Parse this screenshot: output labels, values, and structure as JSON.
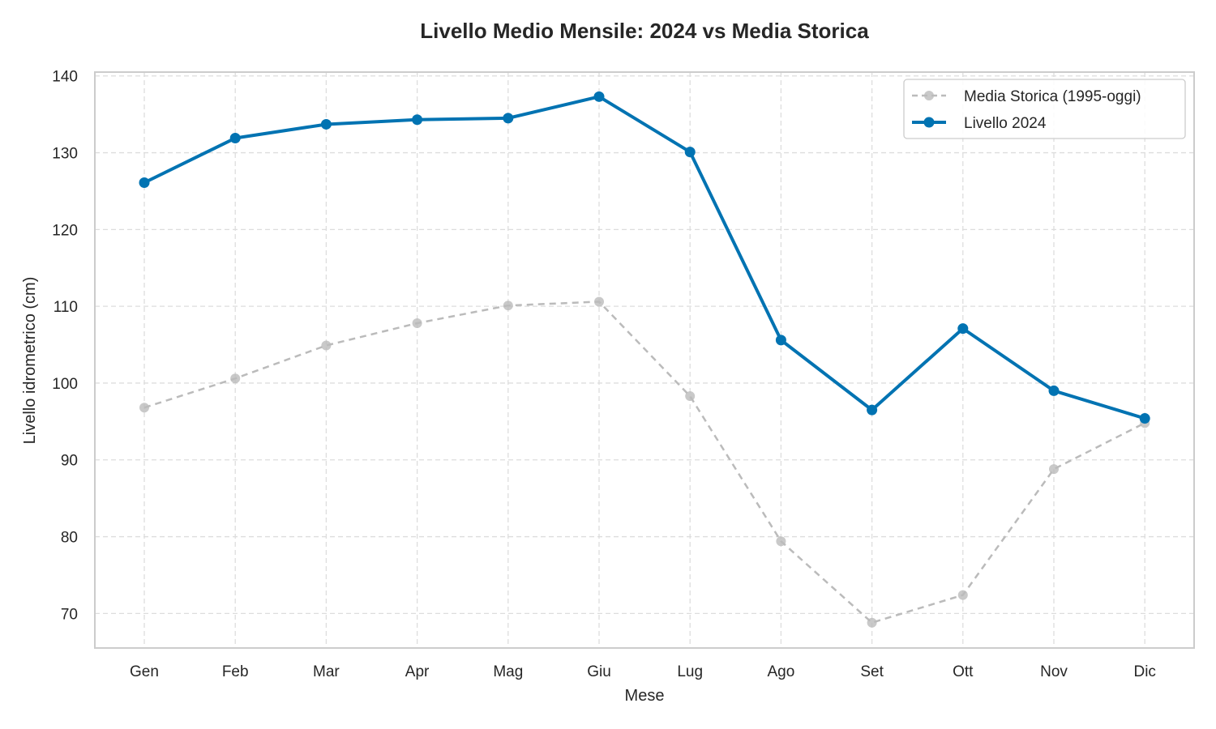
{
  "chart_data": {
    "type": "line",
    "title": "Livello Medio Mensile: 2024 vs Media Storica",
    "xlabel": "Mese",
    "ylabel": "Livello idrometrico (cm)",
    "categories": [
      "Gen",
      "Feb",
      "Mar",
      "Apr",
      "Mag",
      "Giu",
      "Lug",
      "Ago",
      "Set",
      "Ott",
      "Nov",
      "Dic"
    ],
    "ylim": [
      65.5,
      140.5
    ],
    "yticks": [
      70,
      80,
      90,
      100,
      110,
      120,
      130,
      140
    ],
    "grid": true,
    "legend_position": "top-right",
    "series": [
      {
        "name": "Media Storica (1995-oggi)",
        "color": "#bbbbbb",
        "line_style": "dashed",
        "values": [
          96.8,
          100.6,
          104.9,
          107.8,
          110.1,
          110.6,
          98.3,
          79.4,
          68.8,
          72.4,
          88.8,
          94.8
        ]
      },
      {
        "name": "Livello 2024",
        "color": "#0173b2",
        "line_style": "solid",
        "values": [
          126.1,
          131.9,
          133.7,
          134.3,
          134.5,
          137.3,
          130.1,
          105.6,
          96.5,
          107.1,
          99.0,
          95.4
        ]
      }
    ]
  }
}
